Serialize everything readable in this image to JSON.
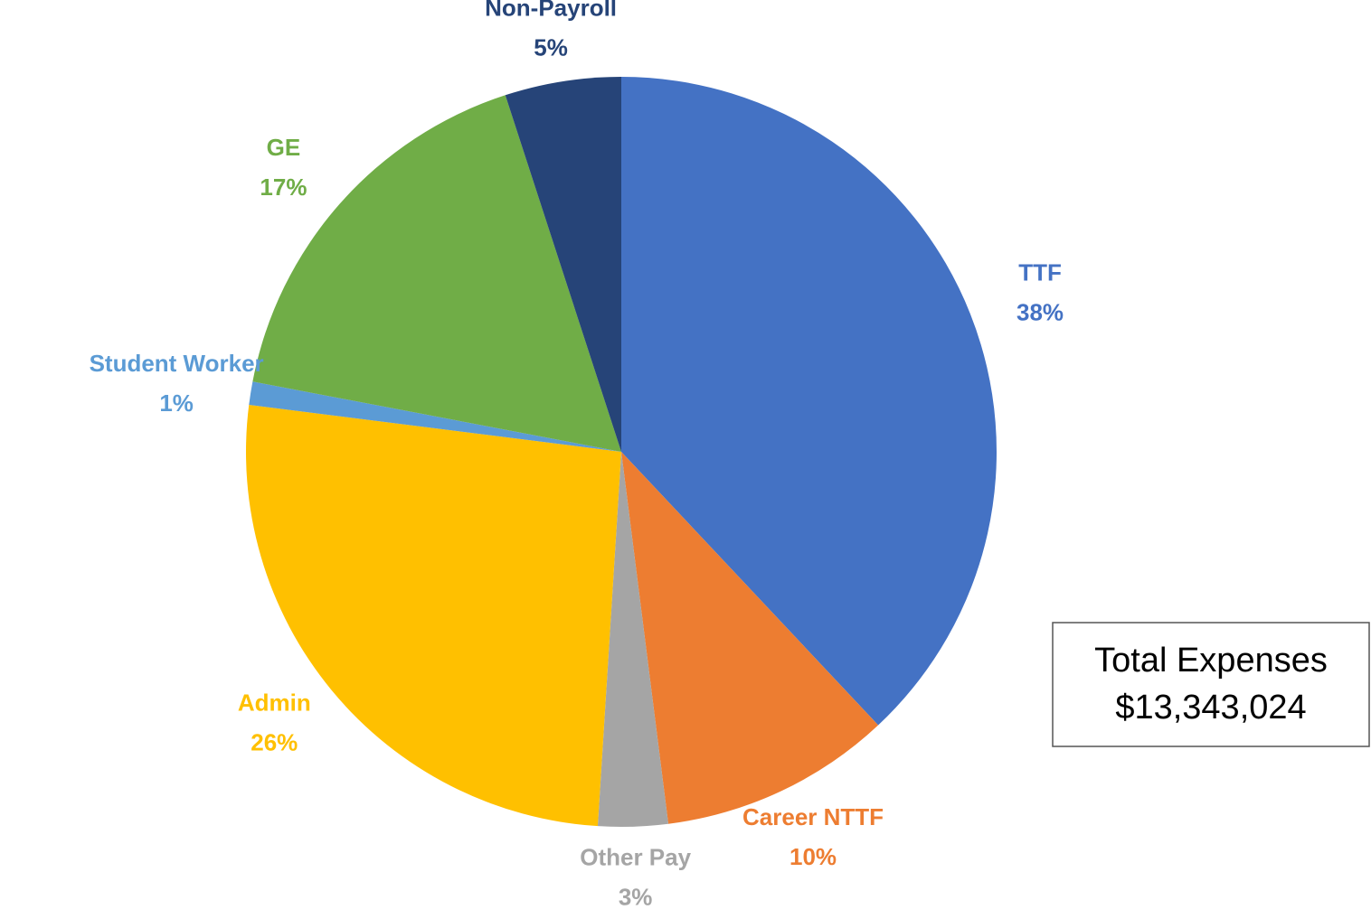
{
  "chart_data": {
    "type": "pie",
    "categories": [
      "TTF",
      "Career NTTF",
      "Other Pay",
      "Admin",
      "Student Worker",
      "GE",
      "Non-Payroll"
    ],
    "values": [
      38,
      10,
      3,
      26,
      1,
      17,
      5
    ],
    "value_labels": [
      "38%",
      "10%",
      "3%",
      "26%",
      "1%",
      "17%",
      "5%"
    ],
    "colors": [
      "#4472c4",
      "#ed7d31",
      "#a5a5a5",
      "#ffc000",
      "#5b9bd5",
      "#70ad47",
      "#264478"
    ],
    "annotation": {
      "title": "Total Expenses",
      "value": "$13,343,024"
    }
  }
}
